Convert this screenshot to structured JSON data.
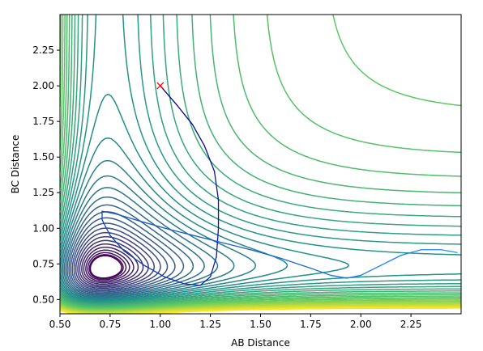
{
  "chart_data": {
    "type": "contour",
    "xlabel": "AB Distance",
    "ylabel": "BC Distance",
    "xlim": [
      0.5,
      2.5
    ],
    "ylim": [
      0.4,
      2.5
    ],
    "xticks": [
      "0.50",
      "0.75",
      "1.00",
      "1.25",
      "1.50",
      "1.75",
      "2.00",
      "2.25"
    ],
    "yticks": [
      "0.50",
      "0.75",
      "1.00",
      "1.25",
      "1.50",
      "1.75",
      "2.00",
      "2.25"
    ],
    "xtick_values": [
      0.5,
      0.75,
      1.0,
      1.25,
      1.5,
      1.75,
      2.0,
      2.25
    ],
    "ytick_values": [
      0.5,
      0.75,
      1.0,
      1.25,
      1.5,
      1.75,
      2.0,
      2.25
    ],
    "colormap": [
      "#440154",
      "#3b528b",
      "#21918c",
      "#5ec962",
      "#fde725"
    ],
    "start_marker": {
      "symbol": "x",
      "color": "#ff0000",
      "x": 1.0,
      "y": 2.0
    },
    "trajectory": {
      "color_start": "#00008b",
      "color_end": "#1e90ff",
      "points": [
        [
          1.0,
          2.0
        ],
        [
          1.08,
          1.87
        ],
        [
          1.16,
          1.73
        ],
        [
          1.22,
          1.58
        ],
        [
          1.27,
          1.4
        ],
        [
          1.29,
          1.2
        ],
        [
          1.29,
          1.0
        ],
        [
          1.28,
          0.8
        ],
        [
          1.25,
          0.66
        ],
        [
          1.2,
          0.6
        ],
        [
          1.12,
          0.61
        ],
        [
          1.02,
          0.66
        ],
        [
          0.92,
          0.74
        ],
        [
          0.82,
          0.84
        ],
        [
          0.75,
          0.95
        ],
        [
          0.71,
          1.06
        ],
        [
          0.71,
          1.12
        ],
        [
          0.78,
          1.1
        ],
        [
          0.9,
          1.05
        ],
        [
          1.05,
          0.99
        ],
        [
          1.25,
          0.92
        ],
        [
          1.45,
          0.85
        ],
        [
          1.6,
          0.79
        ],
        [
          1.75,
          0.72
        ],
        [
          1.85,
          0.67
        ],
        [
          1.93,
          0.65
        ],
        [
          2.0,
          0.67
        ],
        [
          2.1,
          0.74
        ],
        [
          2.2,
          0.81
        ],
        [
          2.3,
          0.85
        ],
        [
          2.4,
          0.85
        ],
        [
          2.48,
          0.83
        ]
      ]
    }
  }
}
